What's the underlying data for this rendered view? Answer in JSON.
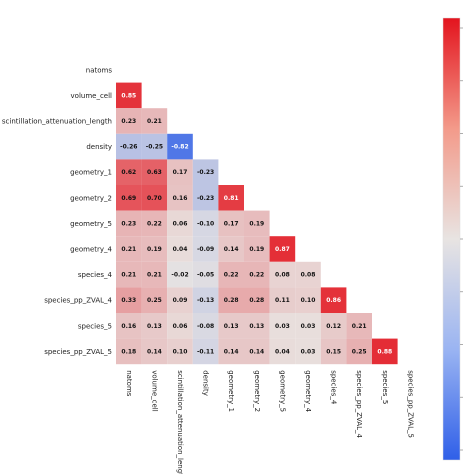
{
  "chart_data": {
    "type": "heatmap",
    "variables": [
      "natoms",
      "volume_cell",
      "scintillation_attenuation_length",
      "density",
      "geometry_1",
      "geometry_2",
      "geometry_5",
      "geometry_4",
      "species_4",
      "species_pp_ZVAL_4",
      "species_5",
      "species_pp_ZVAL_5"
    ],
    "matrix": [
      [],
      [
        0.85
      ],
      [
        0.23,
        0.21
      ],
      [
        -0.26,
        -0.25,
        -0.82
      ],
      [
        0.62,
        0.63,
        0.17,
        -0.23
      ],
      [
        0.69,
        0.7,
        0.16,
        -0.23,
        0.81
      ],
      [
        0.23,
        0.22,
        0.06,
        -0.1,
        0.17,
        0.19
      ],
      [
        0.21,
        0.19,
        0.04,
        -0.09,
        0.14,
        0.19,
        0.87
      ],
      [
        0.21,
        0.21,
        -0.02,
        -0.05,
        0.22,
        0.22,
        0.08,
        0.08
      ],
      [
        0.33,
        0.25,
        0.09,
        -0.13,
        0.28,
        0.28,
        0.11,
        0.1,
        0.86
      ],
      [
        0.16,
        0.13,
        0.06,
        -0.08,
        0.13,
        0.13,
        0.03,
        0.03,
        0.12,
        0.21
      ],
      [
        0.18,
        0.14,
        0.1,
        -0.11,
        0.14,
        0.14,
        0.04,
        0.03,
        0.15,
        0.25,
        0.88
      ]
    ],
    "triangle": "lower",
    "colormap": "coolwarm",
    "vmin": -1,
    "vmax": 1,
    "colorbar": "right",
    "grid": false,
    "colors": {
      "negative": "#2f5fe8",
      "neutral": "#e8e4e2",
      "positive": "#e3141e"
    }
  }
}
